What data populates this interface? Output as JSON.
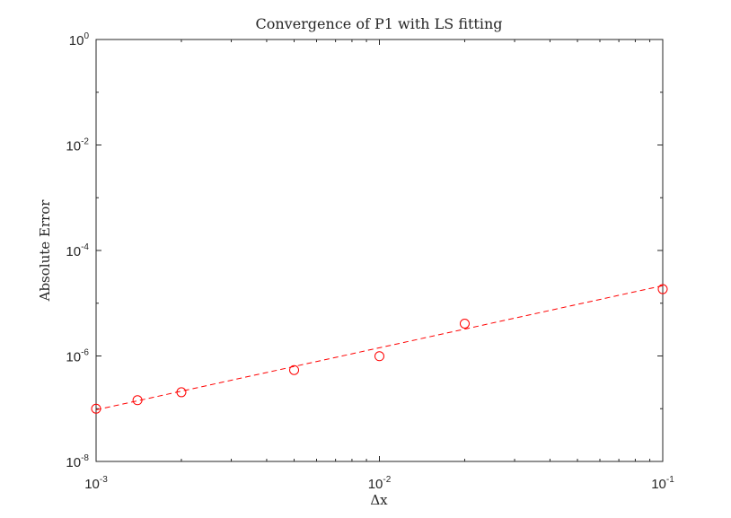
{
  "chart_data": {
    "type": "scatter",
    "title": "Convergence of P1 with LS fitting",
    "xlabel": "Δx",
    "ylabel": "Absolute Error",
    "xscale": "log",
    "yscale": "log",
    "xlim": [
      0.001,
      0.1
    ],
    "ylim": [
      1e-08,
      1
    ],
    "xticks": [
      {
        "base": "10",
        "exp": "-3",
        "value": 0.001
      },
      {
        "base": "10",
        "exp": "-2",
        "value": 0.01
      },
      {
        "base": "10",
        "exp": "-1",
        "value": 0.1
      }
    ],
    "yticks": [
      {
        "base": "10",
        "exp": "0",
        "value": 1
      },
      {
        "base": "10",
        "exp": "-2",
        "value": 0.01
      },
      {
        "base": "10",
        "exp": "-4",
        "value": 0.0001
      },
      {
        "base": "10",
        "exp": "-6",
        "value": 1e-06
      },
      {
        "base": "10",
        "exp": "-8",
        "value": 1e-08
      }
    ],
    "grid": false,
    "series": [
      {
        "kind": "markers",
        "marker": "circle",
        "color": "#ff0000",
        "x": [
          0.001,
          0.0014,
          0.002,
          0.005,
          0.01,
          0.02,
          0.1
        ],
        "y": [
          1e-07,
          1.45e-07,
          2.05e-07,
          5.4e-07,
          9.9e-07,
          4.1e-06,
          1.85e-05
        ]
      },
      {
        "kind": "fit",
        "style": "dashed",
        "color": "#ff0000",
        "x": [
          0.001,
          0.1
        ],
        "y": [
          9.5e-08,
          2.15e-05
        ]
      }
    ]
  }
}
